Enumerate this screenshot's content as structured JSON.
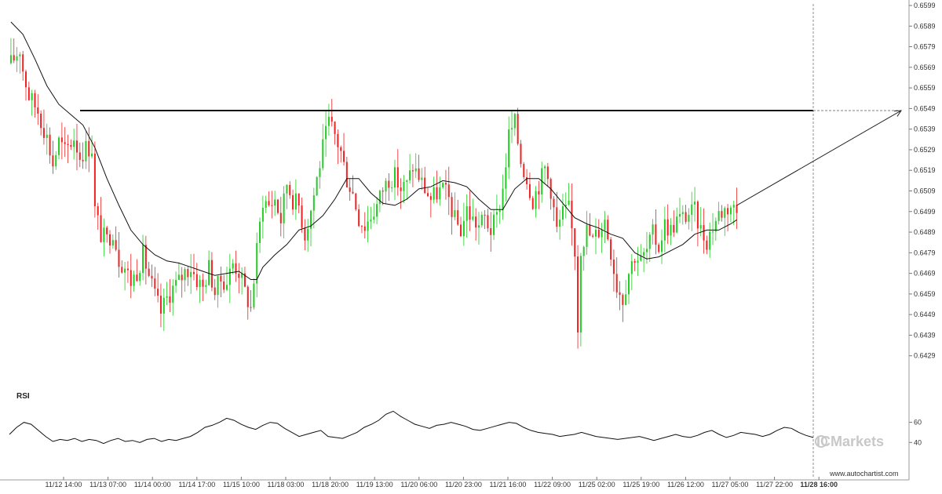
{
  "chart_data": {
    "type": "candlestick",
    "instrument_note": "",
    "y_axis": {
      "min": 0.6419,
      "max": 0.6599,
      "ticks": [
        "0.6599",
        "0.6589",
        "0.6579",
        "0.6569",
        "0.6559",
        "0.6549",
        "0.6539",
        "0.6529",
        "0.6519",
        "0.6509",
        "0.6499",
        "0.6489",
        "0.6479",
        "0.6469",
        "0.6459",
        "0.6449",
        "0.6439",
        "0.6429"
      ]
    },
    "x_axis": {
      "ticks": [
        "11/12 14:00",
        "11/13 07:00",
        "11/14 00:00",
        "11/14 17:00",
        "11/15 10:00",
        "11/18 03:00",
        "11/18 20:00",
        "11/19 13:00",
        "11/20 06:00",
        "11/20 23:00",
        "11/21 16:00",
        "11/22 09:00",
        "11/25 02:00",
        "11/25 19:00",
        "11/26 12:00",
        "11/27 05:00",
        "11/27 22:00",
        "11/28 16:00"
      ],
      "highlight": "11/28 16:00"
    },
    "resistance_level": 0.6548,
    "price_path": [
      [
        0,
        0.6571
      ],
      [
        3,
        0.6578
      ],
      [
        4,
        0.6568
      ],
      [
        6,
        0.6555
      ],
      [
        9,
        0.6548
      ],
      [
        12,
        0.6535
      ],
      [
        14,
        0.6522
      ],
      [
        16,
        0.6533
      ],
      [
        18,
        0.6528
      ],
      [
        21,
        0.6535
      ],
      [
        23,
        0.6526
      ],
      [
        25,
        0.653
      ],
      [
        27,
        0.653
      ],
      [
        28,
        0.65
      ],
      [
        30,
        0.6488
      ],
      [
        32,
        0.6485
      ],
      [
        34,
        0.649
      ],
      [
        36,
        0.6476
      ],
      [
        38,
        0.6472
      ],
      [
        40,
        0.6465
      ],
      [
        42,
        0.647
      ],
      [
        44,
        0.6478
      ],
      [
        46,
        0.6468
      ],
      [
        48,
        0.6458
      ],
      [
        50,
        0.645
      ],
      [
        52,
        0.6457
      ],
      [
        54,
        0.6462
      ],
      [
        56,
        0.6465
      ],
      [
        58,
        0.647
      ],
      [
        60,
        0.6472
      ],
      [
        62,
        0.6466
      ],
      [
        64,
        0.6462
      ],
      [
        66,
        0.6472
      ],
      [
        68,
        0.646
      ],
      [
        70,
        0.6466
      ],
      [
        72,
        0.6465
      ],
      [
        74,
        0.6474
      ],
      [
        76,
        0.647
      ],
      [
        78,
        0.646
      ],
      [
        80,
        0.6452
      ],
      [
        82,
        0.648
      ],
      [
        84,
        0.6505
      ],
      [
        86,
        0.6502
      ],
      [
        88,
        0.6505
      ],
      [
        90,
        0.6495
      ],
      [
        92,
        0.6513
      ],
      [
        94,
        0.6505
      ],
      [
        96,
        0.6502
      ],
      [
        98,
        0.6488
      ],
      [
        100,
        0.65
      ],
      [
        102,
        0.6515
      ],
      [
        104,
        0.653
      ],
      [
        106,
        0.6542
      ],
      [
        108,
        0.6536
      ],
      [
        110,
        0.6528
      ],
      [
        112,
        0.6515
      ],
      [
        114,
        0.6508
      ],
      [
        116,
        0.6496
      ],
      [
        118,
        0.6492
      ],
      [
        120,
        0.6497
      ],
      [
        122,
        0.6502
      ],
      [
        124,
        0.651
      ],
      [
        126,
        0.6515
      ],
      [
        128,
        0.6516
      ],
      [
        130,
        0.651
      ],
      [
        132,
        0.6512
      ],
      [
        134,
        0.6521
      ],
      [
        136,
        0.6516
      ],
      [
        138,
        0.651
      ],
      [
        140,
        0.6505
      ],
      [
        142,
        0.6508
      ],
      [
        144,
        0.651
      ],
      [
        146,
        0.6505
      ],
      [
        148,
        0.6495
      ],
      [
        150,
        0.649
      ],
      [
        152,
        0.65
      ],
      [
        154,
        0.6495
      ],
      [
        156,
        0.6492
      ],
      [
        158,
        0.6496
      ],
      [
        160,
        0.649
      ],
      [
        162,
        0.6496
      ],
      [
        164,
        0.651
      ],
      [
        166,
        0.6536
      ],
      [
        168,
        0.6542
      ],
      [
        170,
        0.6524
      ],
      [
        172,
        0.6515
      ],
      [
        174,
        0.6505
      ],
      [
        176,
        0.6512
      ],
      [
        178,
        0.652
      ],
      [
        180,
        0.651
      ],
      [
        182,
        0.649
      ],
      [
        184,
        0.6498
      ],
      [
        186,
        0.65
      ],
      [
        188,
        0.648
      ],
      [
        189,
        0.6443
      ],
      [
        190,
        0.6482
      ],
      [
        192,
        0.649
      ],
      [
        194,
        0.6485
      ],
      [
        196,
        0.649
      ],
      [
        198,
        0.6495
      ],
      [
        200,
        0.648
      ],
      [
        202,
        0.6463
      ],
      [
        204,
        0.6457
      ],
      [
        206,
        0.647
      ],
      [
        208,
        0.6478
      ],
      [
        210,
        0.6475
      ],
      [
        212,
        0.648
      ],
      [
        214,
        0.6488
      ],
      [
        216,
        0.6482
      ],
      [
        218,
        0.6493
      ],
      [
        220,
        0.649
      ],
      [
        222,
        0.6495
      ],
      [
        224,
        0.6496
      ],
      [
        226,
        0.6498
      ],
      [
        228,
        0.6499
      ],
      [
        230,
        0.649
      ],
      [
        232,
        0.6485
      ],
      [
        234,
        0.6492
      ],
      [
        236,
        0.6498
      ],
      [
        238,
        0.65
      ],
      [
        240,
        0.6502
      ],
      [
        242,
        0.6499
      ]
    ],
    "moving_average": [
      [
        0,
        0.6591
      ],
      [
        4,
        0.6585
      ],
      [
        8,
        0.6573
      ],
      [
        12,
        0.656
      ],
      [
        16,
        0.6551
      ],
      [
        20,
        0.6546
      ],
      [
        24,
        0.6541
      ],
      [
        28,
        0.653
      ],
      [
        32,
        0.6515
      ],
      [
        36,
        0.6502
      ],
      [
        40,
        0.649
      ],
      [
        44,
        0.6483
      ],
      [
        48,
        0.6478
      ],
      [
        52,
        0.6475
      ],
      [
        56,
        0.6474
      ],
      [
        60,
        0.6472
      ],
      [
        64,
        0.647
      ],
      [
        68,
        0.6468
      ],
      [
        72,
        0.6469
      ],
      [
        76,
        0.647
      ],
      [
        80,
        0.6466
      ],
      [
        82,
        0.6466
      ],
      [
        84,
        0.6472
      ],
      [
        88,
        0.6478
      ],
      [
        92,
        0.6483
      ],
      [
        96,
        0.649
      ],
      [
        100,
        0.6492
      ],
      [
        104,
        0.6497
      ],
      [
        108,
        0.6505
      ],
      [
        112,
        0.6515
      ],
      [
        116,
        0.6515
      ],
      [
        120,
        0.6508
      ],
      [
        124,
        0.6503
      ],
      [
        128,
        0.6502
      ],
      [
        132,
        0.6505
      ],
      [
        136,
        0.651
      ],
      [
        140,
        0.6511
      ],
      [
        144,
        0.6514
      ],
      [
        148,
        0.6513
      ],
      [
        152,
        0.6511
      ],
      [
        156,
        0.6505
      ],
      [
        160,
        0.65
      ],
      [
        164,
        0.65
      ],
      [
        168,
        0.651
      ],
      [
        172,
        0.6515
      ],
      [
        176,
        0.6515
      ],
      [
        180,
        0.651
      ],
      [
        184,
        0.6503
      ],
      [
        188,
        0.6496
      ],
      [
        192,
        0.6493
      ],
      [
        196,
        0.6491
      ],
      [
        200,
        0.6488
      ],
      [
        204,
        0.6486
      ],
      [
        208,
        0.6479
      ],
      [
        212,
        0.6476
      ],
      [
        216,
        0.6477
      ],
      [
        220,
        0.648
      ],
      [
        224,
        0.6483
      ],
      [
        228,
        0.6488
      ],
      [
        232,
        0.649
      ],
      [
        236,
        0.649
      ],
      [
        240,
        0.6493
      ],
      [
        242,
        0.6495
      ]
    ],
    "forecast_arrow": {
      "from": [
        242,
        0.6502
      ],
      "to": [
        267,
        0.6548
      ]
    },
    "rsi": {
      "label": "RSI",
      "ticks": [
        "60",
        "40"
      ],
      "values": [
        48,
        55,
        60,
        58,
        52,
        46,
        41,
        43,
        42,
        44,
        41,
        43,
        42,
        39,
        42,
        44,
        41,
        42,
        40,
        43,
        44,
        41,
        43,
        42,
        44,
        46,
        50,
        55,
        57,
        60,
        64,
        62,
        58,
        55,
        53,
        57,
        60,
        59,
        54,
        50,
        46,
        48,
        50,
        52,
        46,
        45,
        44,
        47,
        50,
        55,
        58,
        62,
        68,
        71,
        66,
        62,
        58,
        56,
        54,
        57,
        58,
        60,
        58,
        56,
        53,
        52,
        54,
        56,
        58,
        60,
        59,
        55,
        52,
        50,
        49,
        48,
        46,
        47,
        48,
        50,
        48,
        46,
        45,
        44,
        43,
        44,
        45,
        46,
        44,
        42,
        44,
        46,
        48,
        46,
        45,
        47,
        50,
        52,
        48,
        45,
        47,
        50,
        49,
        48,
        46,
        48,
        52,
        55,
        54,
        50,
        47,
        45
      ],
      "range": [
        20,
        90
      ]
    },
    "candle_seed": 17
  },
  "branding": {
    "logo_text": "ICMarkets",
    "site": "www.autochartist.com"
  },
  "colors": {
    "bull": "#22cc22",
    "bear": "#ee2222",
    "ma": "#111111",
    "grid": "#cfcfcf",
    "resistance": "#111111"
  }
}
